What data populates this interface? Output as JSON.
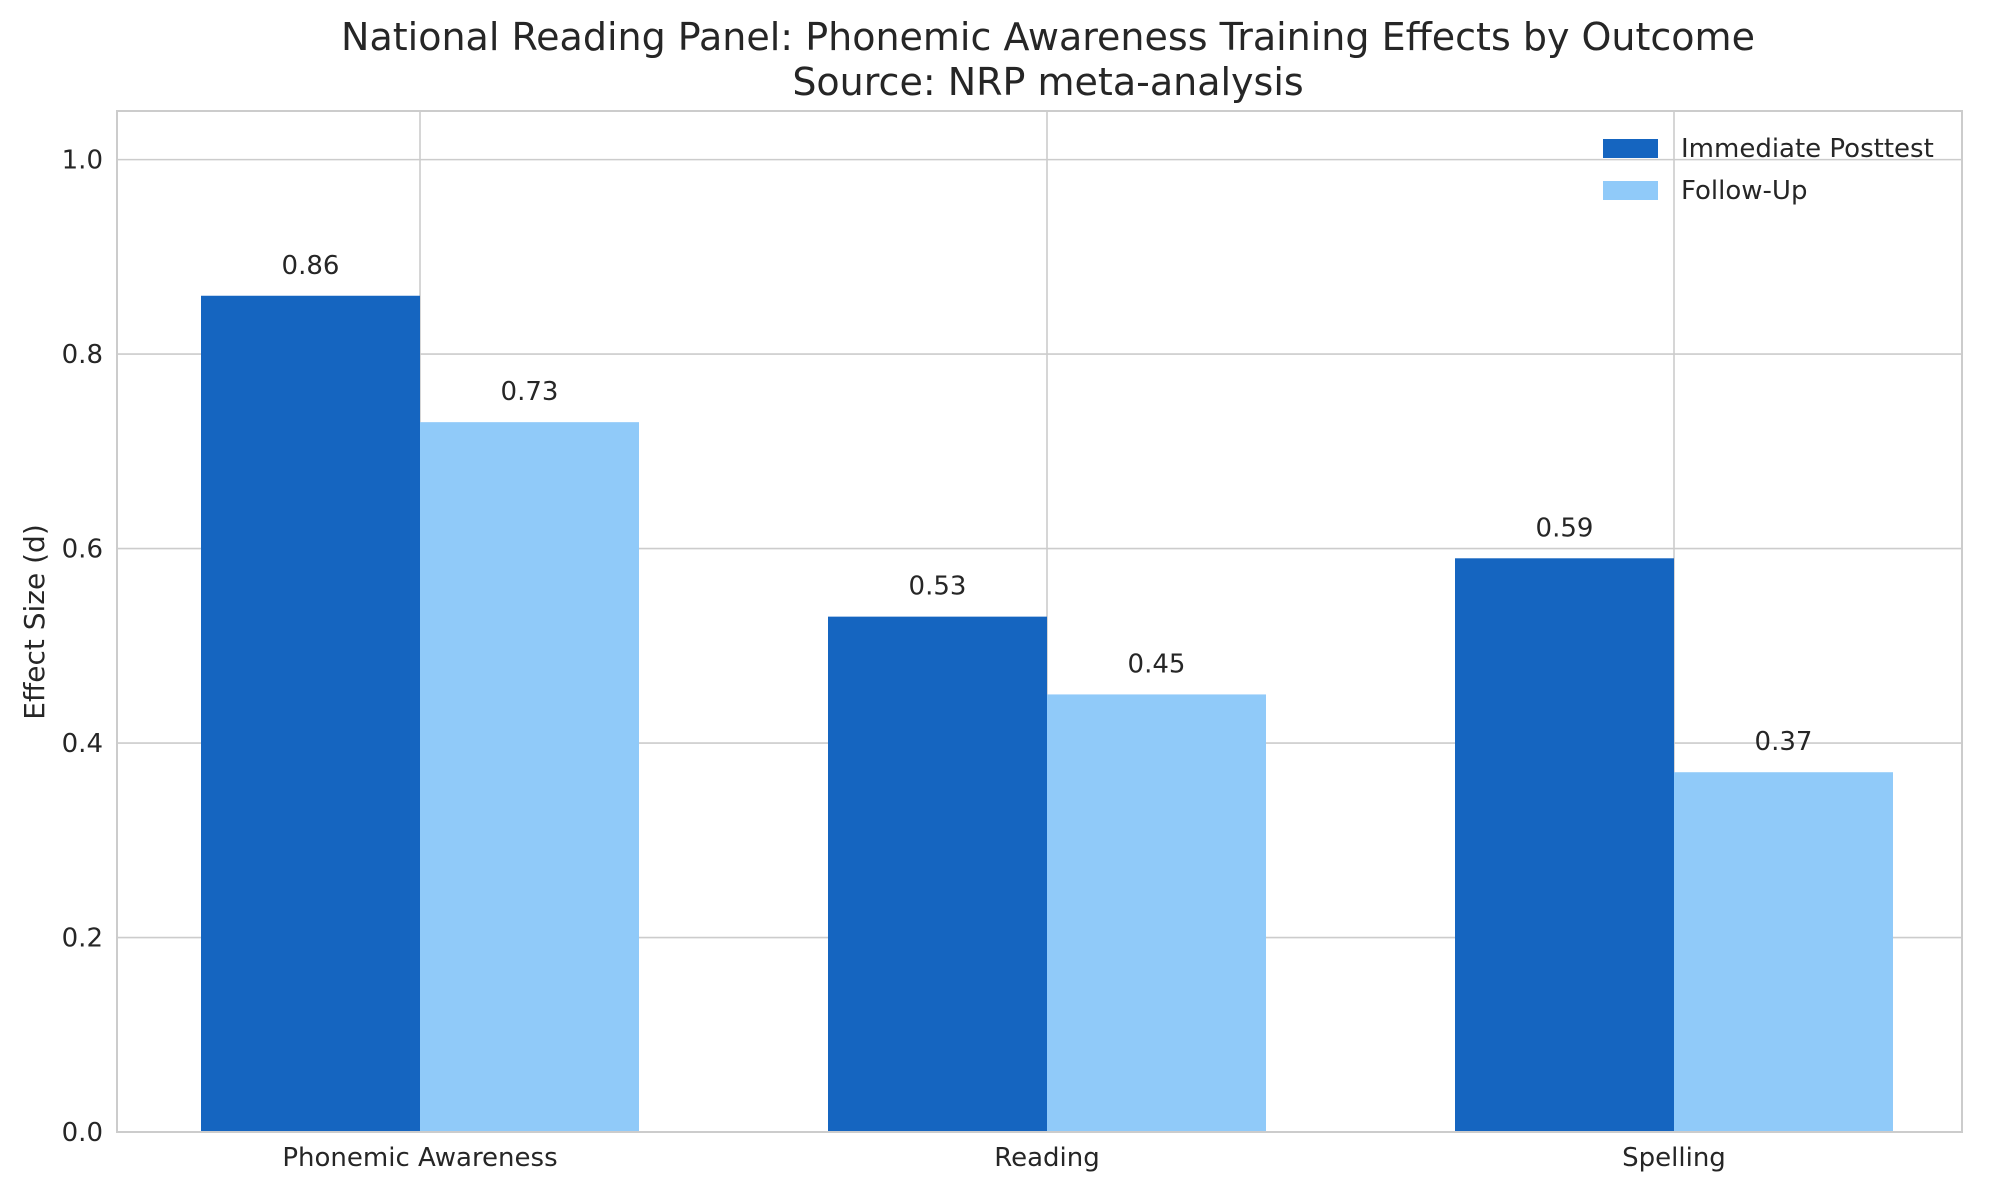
{
  "chart_data": {
    "type": "bar",
    "title": "National Reading Panel: Phonemic Awareness Training Effects by Outcome",
    "subtitle": "Source: NRP meta-analysis",
    "xlabel": "",
    "ylabel": "Effect Size (d)",
    "ylim": [
      0,
      1.05
    ],
    "yticks": [
      "0.0",
      "0.2",
      "0.4",
      "0.6",
      "0.8",
      "1.0"
    ],
    "categories": [
      "Phonemic Awareness",
      "Reading",
      "Spelling"
    ],
    "series": [
      {
        "name": "Immediate Posttest",
        "color": "#1565c0",
        "values": [
          0.86,
          0.53,
          0.59
        ],
        "labels": [
          "0.86",
          "0.53",
          "0.59"
        ]
      },
      {
        "name": "Follow-Up",
        "color": "#90caf9",
        "values": [
          0.73,
          0.45,
          0.37
        ],
        "labels": [
          "0.73",
          "0.45",
          "0.37"
        ]
      }
    ],
    "grid": true,
    "legend": "top-right"
  }
}
